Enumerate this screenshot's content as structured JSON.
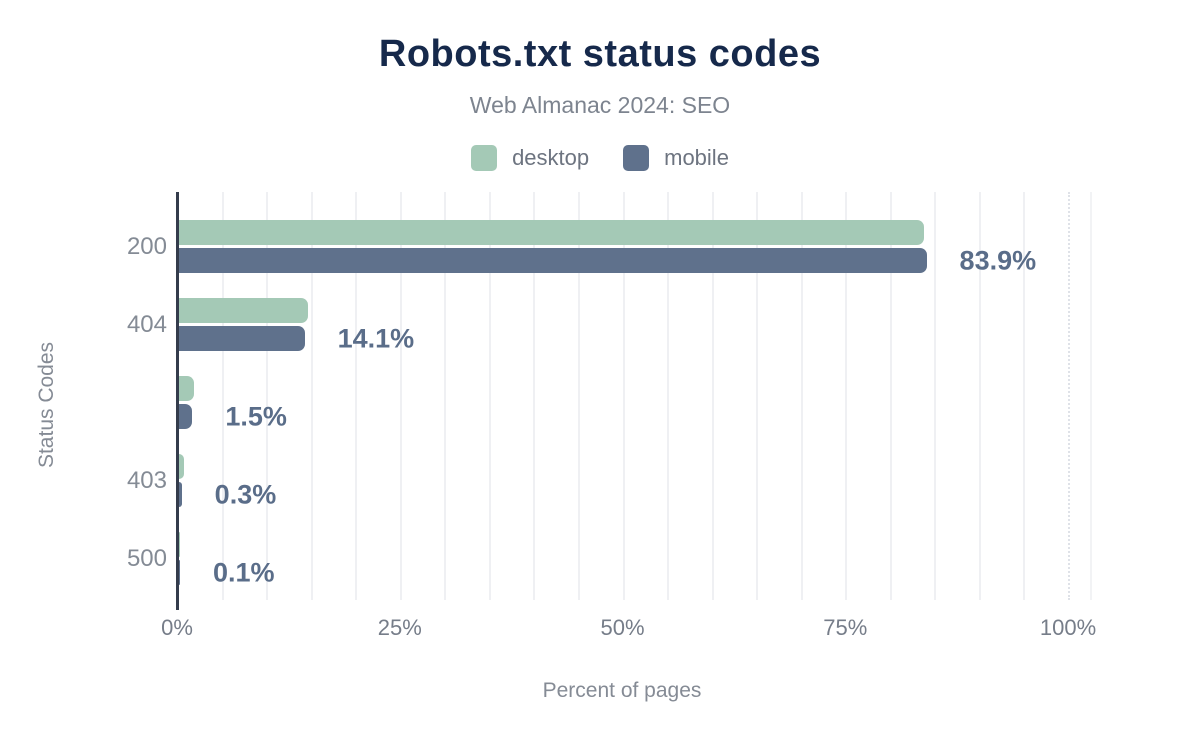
{
  "title": "Robots.txt status codes",
  "subtitle": "Web Almanac 2024: SEO",
  "legend": [
    {
      "label": "desktop",
      "color": "#a4c9b6"
    },
    {
      "label": "mobile",
      "color": "#5f718c"
    }
  ],
  "colors": {
    "title": "#16294b",
    "desktop_bar": "#a4c9b6",
    "mobile_bar": "#5f718c",
    "value_label": "#5a6d89",
    "axis_line": "#343c4c",
    "muted_text": "#848b95"
  },
  "chart_data": {
    "type": "bar",
    "orientation": "horizontal",
    "title": "Robots.txt status codes",
    "subtitle": "Web Almanac 2024: SEO",
    "categories": [
      "200",
      "404",
      "",
      "403",
      "500"
    ],
    "series": [
      {
        "name": "desktop",
        "color": "#a4c9b6",
        "values": [
          83.6,
          14.5,
          1.7,
          0.6,
          0.1
        ]
      },
      {
        "name": "mobile",
        "color": "#5f718c",
        "values": [
          83.9,
          14.1,
          1.5,
          0.3,
          0.1
        ]
      }
    ],
    "value_labels": [
      "83.9%",
      "14.1%",
      "1.5%",
      "0.3%",
      "0.1%"
    ],
    "value_labels_series": "mobile",
    "xlabel": "Percent of pages",
    "ylabel": "Status Codes",
    "xlim": [
      0,
      100
    ],
    "x_ticks": [
      "0%",
      "25%",
      "50%",
      "75%",
      "100%"
    ],
    "x_tick_values": [
      0,
      25,
      50,
      75,
      100
    ],
    "gridline_step_pct": 5,
    "grid": "vertical",
    "legend_position": "top"
  }
}
